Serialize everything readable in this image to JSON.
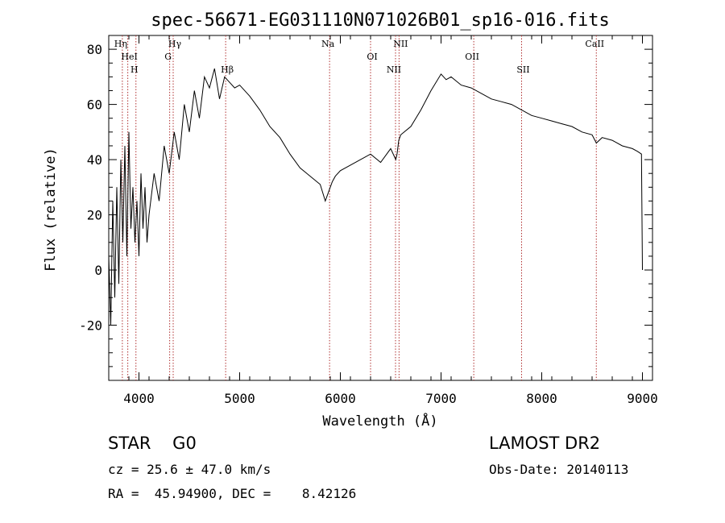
{
  "chart_data": {
    "type": "line",
    "title": "spec-56671-EG031110N071026B01_sp16-016.fits",
    "xlabel": "Wavelength (Å)",
    "ylabel": "Flux (relative)",
    "xlim": [
      3700,
      9100
    ],
    "ylim": [
      -40,
      85
    ],
    "xticks": [
      4000,
      5000,
      6000,
      7000,
      8000,
      9000
    ],
    "yticks": [
      -20,
      0,
      20,
      40,
      60,
      80
    ],
    "grid": false,
    "series": [
      {
        "x": [
          3700,
          3720,
          3740,
          3760,
          3780,
          3800,
          3820,
          3840,
          3860,
          3880,
          3900,
          3920,
          3940,
          3960,
          3980,
          4000,
          4020,
          4040,
          4060,
          4080,
          4100,
          4150,
          4200,
          4250,
          4300,
          4350,
          4400,
          4450,
          4500,
          4550,
          4600,
          4650,
          4700,
          4750,
          4800,
          4850,
          4900,
          4950,
          5000,
          5100,
          5200,
          5300,
          5400,
          5500,
          5600,
          5700,
          5800,
          5850,
          5900,
          5920,
          5950,
          6000,
          6100,
          6200,
          6300,
          6400,
          6500,
          6550,
          6563,
          6580,
          6600,
          6700,
          6800,
          6900,
          7000,
          7050,
          7100,
          7200,
          7300,
          7400,
          7500,
          7600,
          7700,
          7800,
          7900,
          8000,
          8100,
          8200,
          8300,
          8400,
          8500,
          8542,
          8600,
          8700,
          8800,
          8900,
          8950,
          8990,
          9000
        ],
        "y": [
          5,
          -20,
          25,
          -10,
          30,
          -5,
          40,
          10,
          45,
          5,
          50,
          15,
          30,
          10,
          25,
          5,
          35,
          15,
          30,
          10,
          20,
          35,
          25,
          45,
          35,
          50,
          40,
          60,
          50,
          65,
          55,
          70,
          66,
          73,
          62,
          70,
          68,
          66,
          67,
          63,
          58,
          52,
          48,
          42,
          37,
          34,
          31,
          25,
          30,
          32,
          34,
          36,
          38,
          40,
          42,
          39,
          44,
          40,
          42,
          47,
          49,
          52,
          58,
          65,
          71,
          69,
          70,
          67,
          66,
          64,
          62,
          61,
          60,
          58,
          56,
          55,
          54,
          53,
          52,
          50,
          49,
          46,
          48,
          47,
          45,
          44,
          43,
          42,
          0
        ]
      }
    ],
    "lines": [
      {
        "label": "Hη",
        "x": 3835
      },
      {
        "label": "HeI",
        "x": 3889
      },
      {
        "label": "H",
        "x": 3970
      },
      {
        "label": "Hγ",
        "x": 4340
      },
      {
        "label": "G",
        "x": 4305
      },
      {
        "label": "Hβ",
        "x": 4861
      },
      {
        "label": "Na",
        "x": 5893
      },
      {
        "label": "OI",
        "x": 6300
      },
      {
        "label": "NII",
        "x": 6548
      },
      {
        "label": "NII",
        "x": 6583
      },
      {
        "label": "OII",
        "x": 7325
      },
      {
        "label": "SII",
        "x": 7800
      },
      {
        "label": "CaII",
        "x": 8542
      }
    ]
  },
  "info": {
    "obj_class": "STAR    G0",
    "cz": "cz = 25.6 ± 47.0 km/s",
    "radec": "RA =  45.94900, DEC =    8.42126",
    "survey": "LAMOST DR2",
    "obs_date": "Obs-Date: 20140113"
  }
}
